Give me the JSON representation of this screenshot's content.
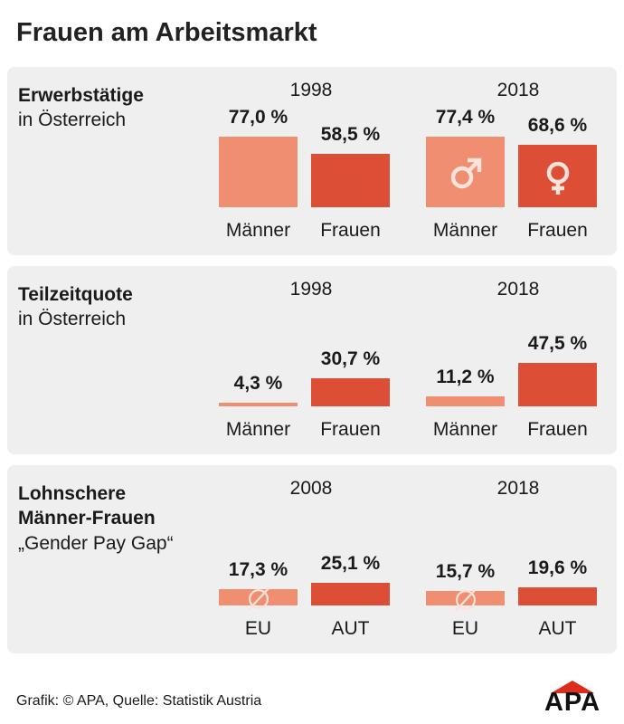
{
  "title": "Frauen am Arbeitsmarkt",
  "colors": {
    "light": "#ef8e71",
    "dark": "#dd4e36",
    "panel": "#efefef",
    "symbol": "#fbe3d9"
  },
  "panels": [
    {
      "title": "Erwerbstätige",
      "subtitle": "in Österreich",
      "years": [
        "1998",
        "2018"
      ],
      "bars": [
        {
          "category": "Männer",
          "value": 77.0,
          "label": "77,0 %",
          "shade": "light"
        },
        {
          "category": "Frauen",
          "value": 58.5,
          "label": "58,5 %",
          "shade": "dark"
        },
        {
          "category": "Männer",
          "value": 77.4,
          "label": "77,4 %",
          "shade": "light",
          "icon": "male-symbol-icon"
        },
        {
          "category": "Frauen",
          "value": 68.6,
          "label": "68,6 %",
          "shade": "dark",
          "icon": "female-symbol-icon"
        }
      ]
    },
    {
      "title": "Teilzeitquote",
      "subtitle": "in Österreich",
      "years": [
        "1998",
        "2018"
      ],
      "bars": [
        {
          "category": "Männer",
          "value": 4.3,
          "label": "4,3 %",
          "shade": "light"
        },
        {
          "category": "Frauen",
          "value": 30.7,
          "label": "30,7 %",
          "shade": "dark"
        },
        {
          "category": "Männer",
          "value": 11.2,
          "label": "11,2 %",
          "shade": "light"
        },
        {
          "category": "Frauen",
          "value": 47.5,
          "label": "47,5 %",
          "shade": "dark"
        }
      ]
    },
    {
      "title": "Lohnschere",
      "title2": "Männer-Frauen",
      "subtitle": "„Gender Pay Gap“",
      "years": [
        "2008",
        "2018"
      ],
      "bars": [
        {
          "category": "EU",
          "value": 17.3,
          "label": "17,3 %",
          "shade": "light",
          "icon": "average-symbol-icon"
        },
        {
          "category": "AUT",
          "value": 25.1,
          "label": "25,1 %",
          "shade": "dark"
        },
        {
          "category": "EU",
          "value": 15.7,
          "label": "15,7 %",
          "shade": "light",
          "icon": "average-symbol-icon"
        },
        {
          "category": "AUT",
          "value": 19.6,
          "label": "19,6 %",
          "shade": "dark"
        }
      ]
    }
  ],
  "footer": "Grafik: © APA, Quelle: Statistik Austria",
  "logo": "APA",
  "chart_data": [
    {
      "type": "bar",
      "title": "Erwerbstätige",
      "subtitle": "in Österreich",
      "groups": [
        "1998",
        "2018"
      ],
      "categories": [
        "Männer",
        "Frauen"
      ],
      "series": [
        {
          "group": "1998",
          "values": [
            77.0,
            58.5
          ]
        },
        {
          "group": "2018",
          "values": [
            77.4,
            68.6
          ]
        }
      ]
    },
    {
      "type": "bar",
      "title": "Teilzeitquote",
      "subtitle": "in Österreich",
      "groups": [
        "1998",
        "2018"
      ],
      "categories": [
        "Männer",
        "Frauen"
      ],
      "series": [
        {
          "group": "1998",
          "values": [
            4.3,
            30.7
          ]
        },
        {
          "group": "2018",
          "values": [
            11.2,
            47.5
          ]
        }
      ]
    },
    {
      "type": "bar",
      "title": "Lohnschere Männer-Frauen",
      "subtitle": "„Gender Pay Gap“",
      "groups": [
        "2008",
        "2018"
      ],
      "categories": [
        "EU",
        "AUT"
      ],
      "series": [
        {
          "group": "2008",
          "values": [
            17.3,
            25.1
          ]
        },
        {
          "group": "2018",
          "values": [
            15.7,
            19.6
          ]
        }
      ]
    }
  ]
}
